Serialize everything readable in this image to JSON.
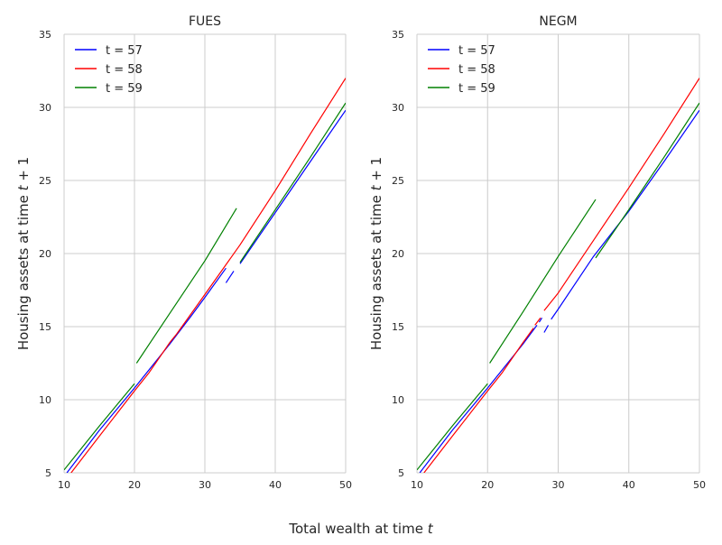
{
  "figure": {
    "xlabel": "Total wealth at time t"
  },
  "chart_data": [
    {
      "type": "line",
      "title": "FUES",
      "xlabel": "Total wealth at time t",
      "ylabel": "Housing assets at time t + 1",
      "xlim": [
        10,
        50
      ],
      "ylim": [
        5,
        35
      ],
      "xticks": [
        10,
        20,
        30,
        40,
        50
      ],
      "yticks": [
        5,
        10,
        15,
        20,
        25,
        30,
        35
      ],
      "grid": true,
      "legend": "top-left",
      "series": [
        {
          "name": "t = 57",
          "color": "#0000ff",
          "segments": [
            [
              [
                10.4,
                5.0
              ],
              [
                15.0,
                7.9
              ],
              [
                20.0,
                10.8
              ],
              [
                25.0,
                13.8
              ],
              [
                28.0,
                15.7
              ],
              [
                30.0,
                17.0
              ],
              [
                33.0,
                19.0
              ]
            ],
            [
              [
                33.0,
                18.0
              ],
              [
                34.1,
                18.8
              ]
            ],
            [
              [
                35.0,
                19.3
              ],
              [
                40.0,
                22.8
              ],
              [
                45.0,
                26.3
              ],
              [
                50.0,
                29.8
              ]
            ]
          ]
        },
        {
          "name": "t = 58",
          "color": "#ff0000",
          "segments": [
            [
              [
                11.0,
                5.0
              ],
              [
                15.0,
                7.5
              ],
              [
                20.0,
                10.6
              ],
              [
                22.0,
                11.8
              ]
            ],
            [
              [
                22.0,
                11.8
              ],
              [
                25.0,
                13.9
              ],
              [
                26.0,
                14.5
              ]
            ],
            [
              [
                26.0,
                14.5
              ],
              [
                30.0,
                17.2
              ],
              [
                35.0,
                20.6
              ],
              [
                40.0,
                24.3
              ],
              [
                45.0,
                28.2
              ],
              [
                50.0,
                32.0
              ]
            ]
          ]
        },
        {
          "name": "t = 59",
          "color": "#008000",
          "segments": [
            [
              [
                10.0,
                5.2
              ],
              [
                15.0,
                8.2
              ],
              [
                20.0,
                11.1
              ]
            ],
            [
              [
                20.3,
                12.5
              ],
              [
                25.0,
                15.9
              ],
              [
                30.0,
                19.5
              ],
              [
                34.5,
                23.1
              ]
            ],
            [
              [
                35.0,
                19.4
              ],
              [
                40.0,
                23.0
              ],
              [
                45.0,
                26.6
              ],
              [
                50.0,
                30.3
              ]
            ]
          ]
        }
      ]
    },
    {
      "type": "line",
      "title": "NEGM",
      "xlabel": "Total wealth at time t",
      "ylabel": "Housing assets at time t + 1",
      "xlim": [
        10,
        50
      ],
      "ylim": [
        5,
        35
      ],
      "xticks": [
        10,
        20,
        30,
        40,
        50
      ],
      "yticks": [
        5,
        10,
        15,
        20,
        25,
        30,
        35
      ],
      "grid": true,
      "legend": "top-left",
      "series": [
        {
          "name": "t = 57",
          "color": "#0000ff",
          "segments": [
            [
              [
                10.4,
                5.0
              ],
              [
                15.0,
                7.9
              ],
              [
                20.0,
                10.8
              ],
              [
                25.0,
                13.8
              ],
              [
                27.0,
                15.1
              ]
            ],
            [
              [
                27.3,
                15.3
              ],
              [
                27.7,
                15.6
              ]
            ],
            [
              [
                28.0,
                14.6
              ],
              [
                28.6,
                15.1
              ]
            ],
            [
              [
                29.0,
                15.5
              ],
              [
                30.0,
                16.2
              ],
              [
                35.0,
                19.8
              ],
              [
                40.0,
                22.9
              ],
              [
                45.0,
                26.3
              ],
              [
                50.0,
                29.8
              ]
            ]
          ]
        },
        {
          "name": "t = 58",
          "color": "#ff0000",
          "segments": [
            [
              [
                11.0,
                5.0
              ],
              [
                15.0,
                7.5
              ],
              [
                20.0,
                10.6
              ],
              [
                22.0,
                11.8
              ]
            ],
            [
              [
                22.0,
                11.8
              ],
              [
                25.0,
                13.9
              ],
              [
                26.5,
                14.9
              ]
            ],
            [
              [
                26.7,
                15.1
              ],
              [
                27.5,
                15.6
              ]
            ],
            [
              [
                28.0,
                16.1
              ],
              [
                30.0,
                17.3
              ],
              [
                35.0,
                20.9
              ],
              [
                40.0,
                24.5
              ],
              [
                45.0,
                28.2
              ],
              [
                50.0,
                32.0
              ]
            ]
          ]
        },
        {
          "name": "t = 59",
          "color": "#008000",
          "segments": [
            [
              [
                10.0,
                5.2
              ],
              [
                15.0,
                8.2
              ],
              [
                20.0,
                11.1
              ]
            ],
            [
              [
                20.3,
                12.5
              ],
              [
                25.0,
                16.0
              ],
              [
                30.0,
                19.8
              ],
              [
                35.3,
                23.7
              ]
            ],
            [
              [
                35.3,
                19.7
              ],
              [
                40.0,
                23.0
              ],
              [
                45.0,
                26.6
              ],
              [
                50.0,
                30.3
              ]
            ]
          ]
        }
      ]
    }
  ]
}
